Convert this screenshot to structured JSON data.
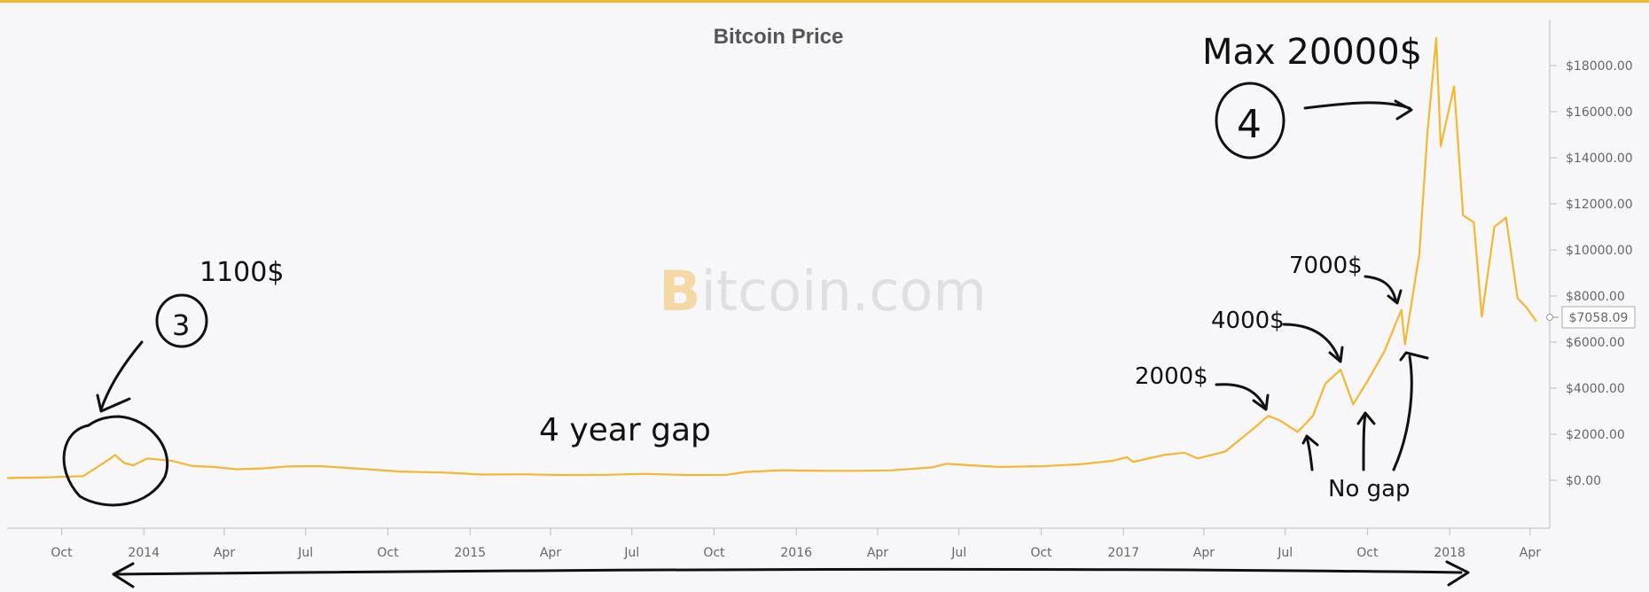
{
  "chart_data": {
    "type": "line",
    "title": "Bitcoin Price",
    "xlabel": "",
    "ylabel": "",
    "x_ticks": [
      "Oct",
      "2014",
      "Apr",
      "Jul",
      "Oct",
      "2015",
      "Apr",
      "Jul",
      "Oct",
      "2016",
      "Apr",
      "Jul",
      "Oct",
      "2017",
      "Apr",
      "Jul",
      "Oct",
      "2018",
      "Apr"
    ],
    "y_ticks": [
      "$0.00",
      "$2000.00",
      "$4000.00",
      "$6000.00",
      "$8000.00",
      "$10000.00",
      "$12000.00",
      "$14000.00",
      "$16000.00",
      "$18000.00"
    ],
    "ylim": [
      -2000,
      20000
    ],
    "xlim": [
      "2013-08-01",
      "2018-04-15"
    ],
    "current_value_label": "$7058.09",
    "watermark": {
      "brand_letter": "B",
      "rest": "itcoin.com"
    },
    "line_color": "#f4b731",
    "series": [
      {
        "x": [
          "2013-08-01",
          "2013-09-15",
          "2013-10-25",
          "2013-11-15",
          "2013-11-30",
          "2013-12-10",
          "2013-12-20",
          "2014-01-05",
          "2014-02-01",
          "2014-02-25",
          "2014-03-20",
          "2014-04-15",
          "2014-05-15",
          "2014-06-10",
          "2014-07-15",
          "2014-09-01",
          "2014-10-15",
          "2014-12-01",
          "2015-01-15",
          "2015-03-01",
          "2015-04-15",
          "2015-06-01",
          "2015-07-15",
          "2015-09-01",
          "2015-10-15",
          "2015-11-05",
          "2015-12-15",
          "2016-01-15",
          "2016-03-01",
          "2016-04-15",
          "2016-06-01",
          "2016-06-17",
          "2016-07-15",
          "2016-08-15",
          "2016-10-01",
          "2016-11-15",
          "2016-12-20",
          "2017-01-05",
          "2017-01-12",
          "2017-02-15",
          "2017-03-10",
          "2017-03-25",
          "2017-04-25",
          "2017-05-25",
          "2017-06-12",
          "2017-06-25",
          "2017-07-15",
          "2017-08-01",
          "2017-08-15",
          "2017-09-01",
          "2017-09-15",
          "2017-10-01",
          "2017-10-20",
          "2017-11-08",
          "2017-11-12",
          "2017-11-28",
          "2017-12-07",
          "2017-12-17",
          "2017-12-22",
          "2018-01-06",
          "2018-01-16",
          "2018-01-28",
          "2018-02-06",
          "2018-02-20",
          "2018-03-05",
          "2018-03-18",
          "2018-03-28",
          "2018-04-08"
        ],
        "y": [
          100,
          130,
          180,
          700,
          1100,
          750,
          650,
          950,
          850,
          620,
          580,
          480,
          520,
          600,
          620,
          500,
          380,
          340,
          250,
          260,
          230,
          240,
          280,
          230,
          240,
          360,
          440,
          420,
          410,
          430,
          560,
          720,
          650,
          580,
          610,
          700,
          850,
          1000,
          800,
          1100,
          1200,
          950,
          1250,
          2200,
          2800,
          2600,
          2100,
          2800,
          4200,
          4800,
          3300,
          4300,
          5600,
          7400,
          5900,
          9800,
          15000,
          19200,
          14500,
          17100,
          11500,
          11200,
          7100,
          11000,
          11400,
          7900,
          7500,
          6900
        ]
      }
    ],
    "annotations": {
      "peak": "Max 20000$",
      "peak_number": "4",
      "early": "1100$",
      "early_number": "3",
      "gap": "4 year gap",
      "p2000": "2000$",
      "p4000": "4000$",
      "p7000": "7000$",
      "no_gap": "No gap"
    }
  }
}
